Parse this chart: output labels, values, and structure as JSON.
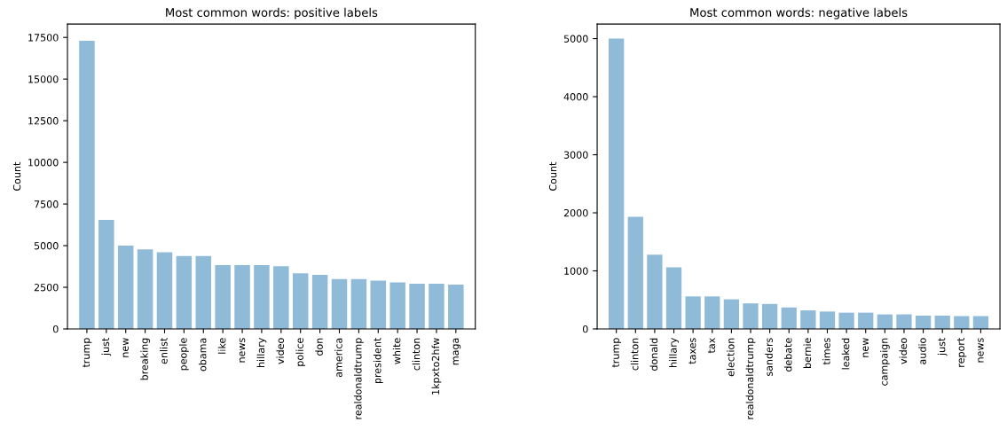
{
  "chart_data": [
    {
      "type": "bar",
      "title": "Most common words: positive labels",
      "ylabel": "Count",
      "categories": [
        "trump",
        "just",
        "new",
        "breaking",
        "enlist",
        "people",
        "obama",
        "like",
        "news",
        "hillary",
        "video",
        "police",
        "don",
        "america",
        "realdonaldtrump",
        "president",
        "white",
        "clinton",
        "1kpxto2hfw",
        "maga"
      ],
      "values": [
        17300,
        6550,
        5000,
        4780,
        4600,
        4380,
        4380,
        3830,
        3830,
        3830,
        3770,
        3340,
        3250,
        3000,
        3000,
        2900,
        2800,
        2720,
        2720,
        2660
      ],
      "color": "#8fbbd9",
      "ylim": [
        0,
        18300
      ],
      "yticks": [
        0,
        2500,
        5000,
        7500,
        10000,
        12500,
        15000,
        17500
      ],
      "grid": false
    },
    {
      "type": "bar",
      "title": "Most common words: negative labels",
      "ylabel": "Count",
      "categories": [
        "trump",
        "clinton",
        "donald",
        "hillary",
        "taxes",
        "tax",
        "election",
        "realdonaldtrump",
        "sanders",
        "debate",
        "bernie",
        "times",
        "leaked",
        "new",
        "campaign",
        "video",
        "audio",
        "just",
        "report",
        "news"
      ],
      "values": [
        5000,
        1930,
        1280,
        1060,
        560,
        560,
        510,
        440,
        430,
        370,
        320,
        300,
        280,
        280,
        250,
        250,
        230,
        230,
        220,
        220
      ],
      "color": "#8fbbd9",
      "ylim": [
        0,
        5250
      ],
      "yticks": [
        0,
        1000,
        2000,
        3000,
        4000,
        5000
      ],
      "grid": false
    }
  ]
}
